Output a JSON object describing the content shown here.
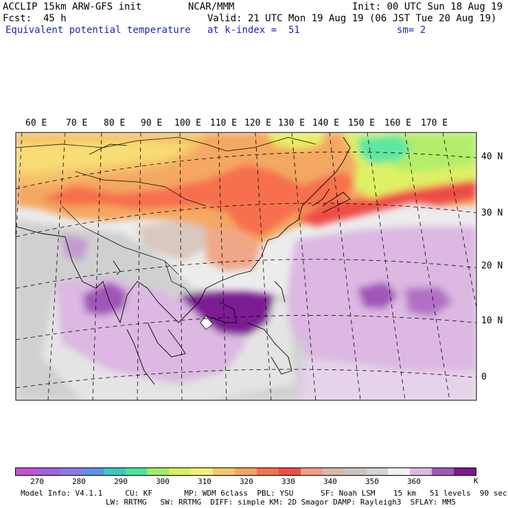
{
  "header": {
    "model": "ACCLIP 15km ARW-GFS init",
    "org": "NCAR/MMM",
    "init": "Init: 00 UTC Sun 18 Aug 19",
    "fcst": "Fcst:  45 h",
    "valid": "Valid: 21 UTC Mon 19 Aug 19 (06 JST Tue 20 Aug 19)",
    "field": "Equivalent potential temperature",
    "level": "at k-index =  51",
    "smooth": "sm= 2"
  },
  "map": {
    "lon_labels": [
      "60 E",
      "70 E",
      "80 E",
      "90 E",
      "100 E",
      "110 E",
      "120 E",
      "130 E",
      "140 E",
      "150 E",
      "160 E",
      "170 E"
    ],
    "lat_labels": [
      "40 N",
      "30 N",
      "20 N",
      "10 N",
      "0"
    ]
  },
  "colorbar": {
    "unit": "K",
    "tick_labels": [
      "270",
      "280",
      "290",
      "300",
      "310",
      "320",
      "330",
      "340",
      "350",
      "360"
    ],
    "colors": [
      "#c550d8",
      "#a45ee0",
      "#8a78e6",
      "#5f8fe8",
      "#3dc6c6",
      "#45e69a",
      "#9cee62",
      "#d6f060",
      "#f4ef75",
      "#f6c86a",
      "#f4a55e",
      "#f6724e",
      "#ee4c44",
      "#f29c86",
      "#d8b8a4",
      "#c9c4bf",
      "#d3d3d3",
      "#f1f1f1",
      "#dcb8e2",
      "#a057b8",
      "#7c1a92"
    ]
  },
  "footer": {
    "line1": "Model Info: V4.1.1     CU: KF       MP: WDM 6class  PBL: YSU      SF: Noah LSM    15 km   51 levels  90 sec",
    "line2": "LW: RRTMG   SW: RRTMG  DIFF: simple KM: 2D Smagor DAMP: Rayleigh3  SFLAY: MM5"
  }
}
